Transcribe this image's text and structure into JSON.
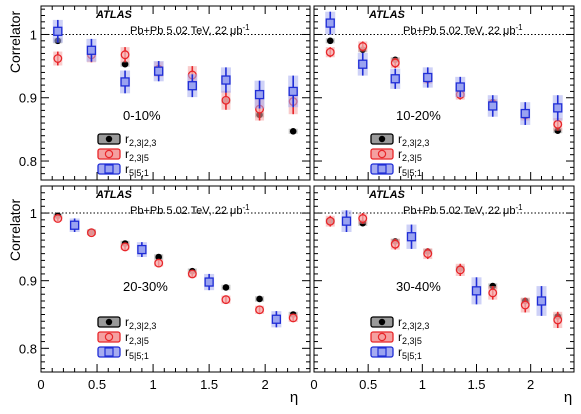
{
  "figure": {
    "ylabel": "Correlator",
    "xlabel": "η",
    "atlas": "ATLAS",
    "system": "Pb+Pb 5.02 TeV, 22 μb",
    "system_sup": "-1",
    "xticks": [
      "0",
      "0.5",
      "1",
      "1.5",
      "2"
    ],
    "yticks": [
      "1",
      "0.9",
      "0.8"
    ],
    "legend": [
      {
        "main": "r",
        "sub": "2,3|2,3",
        "marker": "circle-filled",
        "color": "#000000",
        "band": "#888888"
      },
      {
        "main": "r",
        "sub": "2,3|5",
        "marker": "circle-open",
        "color": "#e8262a",
        "band": "#f5a3a3"
      },
      {
        "main": "r",
        "sub": "5|5;1",
        "marker": "square",
        "color": "#1f2dd6",
        "band": "#a0a6ee"
      }
    ],
    "colors": {
      "black": "#000000",
      "red": "#e8262a",
      "blue": "#1f2dd6"
    }
  },
  "chart_data": [
    {
      "type": "scatter",
      "centrality": "0-10%",
      "xlim": [
        0,
        2.4
      ],
      "ylim": [
        0.77,
        1.045
      ],
      "reference_line": 1.0,
      "series": [
        {
          "name": "r_{2,3|2,3}",
          "x": [
            0.15,
            0.45,
            0.75,
            1.05,
            1.35,
            1.65,
            1.95,
            2.25
          ],
          "y": [
            0.99,
            0.973,
            0.953,
            0.942,
            0.921,
            0.895,
            0.873,
            0.847
          ],
          "err": [
            0.004,
            0.004,
            0.004,
            0.004,
            0.004,
            0.004,
            0.004,
            0.004
          ]
        },
        {
          "name": "r_{2,3|5}",
          "x": [
            0.15,
            0.45,
            0.75,
            1.05,
            1.35,
            1.65,
            1.95,
            2.25
          ],
          "y": [
            0.962,
            0.968,
            0.968,
            0.945,
            0.936,
            0.896,
            0.882,
            0.894
          ],
          "err": [
            0.011,
            0.012,
            0.012,
            0.012,
            0.014,
            0.015,
            0.018,
            0.02
          ]
        },
        {
          "name": "r_{5|5;1}",
          "x": [
            0.15,
            0.45,
            0.75,
            1.05,
            1.35,
            1.65,
            1.95,
            2.25
          ],
          "y": [
            1.005,
            0.975,
            0.925,
            0.942,
            0.919,
            0.928,
            0.905,
            0.91
          ],
          "err": [
            0.018,
            0.018,
            0.018,
            0.016,
            0.018,
            0.02,
            0.022,
            0.025
          ]
        }
      ]
    },
    {
      "type": "scatter",
      "centrality": "10-20%",
      "xlim": [
        0,
        2.4
      ],
      "ylim": [
        0.77,
        1.045
      ],
      "reference_line": 1.0,
      "series": [
        {
          "name": "r_{2,3|2,3}",
          "x": [
            0.15,
            0.45,
            0.75,
            1.05,
            1.35,
            1.65,
            1.95,
            2.25
          ],
          "y": [
            0.99,
            0.976,
            0.96,
            0.934,
            0.915,
            0.893,
            0.873,
            0.848
          ],
          "err": [
            0.004,
            0.004,
            0.004,
            0.004,
            0.004,
            0.004,
            0.004,
            0.004
          ]
        },
        {
          "name": "r_{2,3|5}",
          "x": [
            0.15,
            0.45,
            0.75,
            1.05,
            1.35,
            1.65,
            1.95,
            2.25
          ],
          "y": [
            0.972,
            0.981,
            0.955,
            0.93,
            0.905,
            0.89,
            0.873,
            0.858
          ],
          "err": [
            0.008,
            0.008,
            0.008,
            0.008,
            0.008,
            0.008,
            0.009,
            0.01
          ]
        },
        {
          "name": "r_{5|5;1}",
          "x": [
            0.15,
            0.45,
            0.75,
            1.05,
            1.35,
            1.65,
            1.95,
            2.25
          ],
          "y": [
            1.018,
            0.953,
            0.93,
            0.932,
            0.917,
            0.887,
            0.875,
            0.884
          ],
          "err": [
            0.018,
            0.018,
            0.016,
            0.016,
            0.016,
            0.017,
            0.018,
            0.02
          ]
        }
      ]
    },
    {
      "type": "scatter",
      "centrality": "20-30%",
      "xlim": [
        0,
        2.4
      ],
      "ylim": [
        0.765,
        1.04
      ],
      "reference_line": 1.0,
      "series": [
        {
          "name": "r_{2,3|2,3}",
          "x": [
            0.15,
            0.45,
            0.75,
            1.05,
            1.35,
            1.65,
            1.95,
            2.25
          ],
          "y": [
            0.996,
            0.972,
            0.955,
            0.935,
            0.914,
            0.89,
            0.873,
            0.85
          ],
          "err": [
            0.004,
            0.004,
            0.004,
            0.004,
            0.004,
            0.004,
            0.004,
            0.004
          ]
        },
        {
          "name": "r_{2,3|5}",
          "x": [
            0.15,
            0.45,
            0.75,
            1.05,
            1.35,
            1.65,
            1.95,
            2.25
          ],
          "y": [
            0.992,
            0.971,
            0.95,
            0.926,
            0.91,
            0.872,
            0.857,
            0.845
          ],
          "err": [
            0.004,
            0.004,
            0.005,
            0.005,
            0.005,
            0.006,
            0.006,
            0.006
          ]
        },
        {
          "name": "r_{5|5;1}",
          "x": [
            0.3,
            0.9,
            1.5,
            2.1
          ],
          "y": [
            0.982,
            0.946,
            0.898,
            0.843
          ],
          "err": [
            0.01,
            0.011,
            0.012,
            0.012
          ]
        }
      ]
    },
    {
      "type": "scatter",
      "centrality": "30-40%",
      "xlim": [
        0,
        2.4
      ],
      "ylim": [
        0.765,
        1.04
      ],
      "reference_line": 1.0,
      "series": [
        {
          "name": "r_{2,3|2,3}",
          "x": [
            0.15,
            0.45,
            0.75,
            1.05,
            1.35,
            1.65,
            1.95,
            2.25
          ],
          "y": [
            0.988,
            0.985,
            0.958,
            0.943,
            0.918,
            0.892,
            0.87,
            0.847
          ],
          "err": [
            0.004,
            0.004,
            0.004,
            0.004,
            0.004,
            0.004,
            0.004,
            0.004
          ]
        },
        {
          "name": "r_{2,3|5}",
          "x": [
            0.15,
            0.45,
            0.75,
            1.05,
            1.35,
            1.65,
            1.95,
            2.25
          ],
          "y": [
            0.988,
            0.992,
            0.954,
            0.94,
            0.916,
            0.882,
            0.864,
            0.842
          ],
          "err": [
            0.008,
            0.008,
            0.008,
            0.008,
            0.009,
            0.01,
            0.011,
            0.012
          ]
        },
        {
          "name": "r_{5|5;1}",
          "x": [
            0.3,
            0.9,
            1.5,
            2.1
          ],
          "y": [
            0.988,
            0.965,
            0.885,
            0.87
          ],
          "err": [
            0.016,
            0.018,
            0.02,
            0.022
          ]
        }
      ]
    }
  ]
}
